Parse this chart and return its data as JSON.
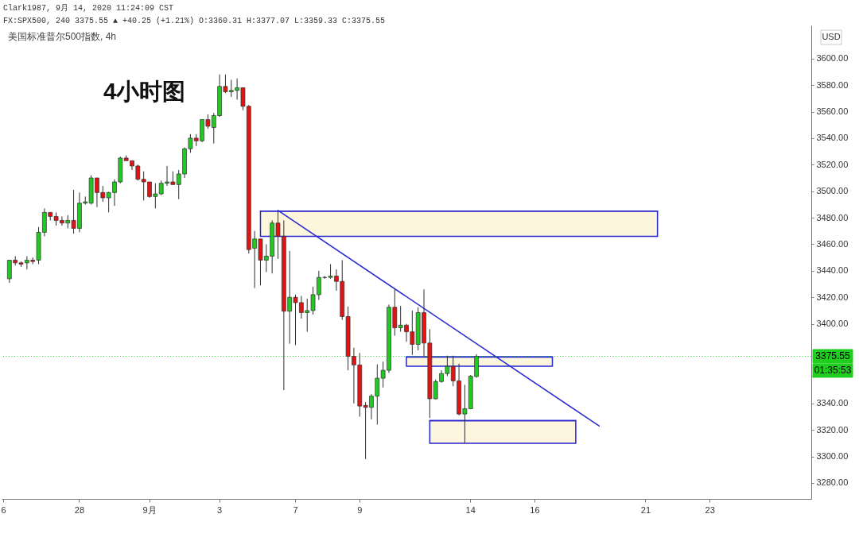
{
  "chart_data": {
    "type": "candlestick",
    "title": "美国标准普尔500指数, 4h",
    "ylabel": "USD",
    "categories": [
      "6",
      null,
      null,
      null,
      null,
      null,
      null,
      null,
      null,
      null,
      null,
      null,
      null,
      "28",
      null,
      null,
      null,
      null,
      null,
      null,
      null,
      null,
      null,
      null,
      null,
      "9月",
      null,
      null,
      null,
      null,
      null,
      null,
      null,
      null,
      null,
      null,
      null,
      "3",
      null,
      null,
      null,
      null,
      null,
      null,
      null,
      null,
      null,
      null,
      null,
      null,
      "7",
      null,
      null,
      null,
      null,
      null,
      null,
      null,
      null,
      null,
      null,
      "9",
      null,
      null,
      null,
      null,
      null,
      null,
      null,
      null,
      null,
      null,
      null,
      null,
      null,
      null,
      null,
      null,
      null,
      null,
      "14",
      null,
      null,
      null,
      null,
      null,
      null,
      null,
      null,
      null,
      null,
      "16",
      null,
      null,
      null,
      null,
      null,
      null,
      null,
      null,
      null,
      null,
      null,
      null,
      null,
      null,
      null,
      null,
      null,
      null,
      "21",
      null,
      null,
      null,
      null,
      null,
      null,
      null,
      null,
      null,
      null,
      "23",
      null,
      null,
      null,
      null,
      null,
      null,
      null,
      null,
      null,
      null,
      null,
      null,
      null,
      null,
      null,
      null,
      null
    ],
    "ohlc": [
      null,
      [
        3434,
        3448,
        3431,
        3448
      ],
      [
        3448,
        3451,
        3444,
        3446
      ],
      [
        3446,
        3447,
        3443,
        3445
      ],
      [
        3446,
        3451,
        3441,
        3448
      ],
      [
        3448,
        3450,
        3445,
        3447
      ],
      [
        3448,
        3473,
        3445,
        3469
      ],
      [
        3469,
        3487,
        3466,
        3484
      ],
      [
        3484,
        3484,
        3478,
        3481
      ],
      [
        3481,
        3484,
        3474,
        3478
      ],
      [
        3478,
        3481,
        3474,
        3476
      ],
      [
        3476,
        3482,
        3472,
        3478
      ],
      [
        3478,
        3501,
        3468,
        3472
      ],
      [
        3472,
        3499,
        3469,
        3491
      ],
      [
        3491,
        3496,
        3490,
        3492
      ],
      [
        3491,
        3512,
        3490,
        3510
      ],
      [
        3510,
        3510,
        3488,
        3499
      ],
      [
        3499,
        3504,
        3492,
        3495
      ],
      [
        3495,
        3499.5,
        3484,
        3499
      ],
      [
        3499,
        3509,
        3489,
        3507
      ],
      [
        3507,
        3526,
        3506,
        3525
      ],
      [
        3525,
        3527,
        3523,
        3523
      ],
      [
        3523,
        3523,
        3516,
        3519
      ],
      [
        3519,
        3520,
        3508,
        3509
      ],
      [
        3509,
        3515,
        3493,
        3507
      ],
      [
        3507,
        3507,
        3495,
        3496
      ],
      [
        3496,
        3506,
        3487,
        3498
      ],
      [
        3498,
        3508,
        3497,
        3506
      ],
      [
        3506,
        3519,
        3504,
        3507
      ],
      [
        3507,
        3515,
        3505,
        3505
      ],
      [
        3505,
        3516,
        3494,
        3513
      ],
      [
        3513,
        3533,
        3510,
        3532
      ],
      [
        3532,
        3543,
        3529,
        3540
      ],
      [
        3540,
        3543,
        3534,
        3538
      ],
      [
        3538,
        3554,
        3537,
        3554
      ],
      [
        3554,
        3558,
        3547,
        3549
      ],
      [
        3548,
        3559,
        3536,
        3557
      ],
      [
        3557,
        3588,
        3556,
        3579
      ],
      [
        3579,
        3588,
        3574,
        3575
      ],
      [
        3575,
        3584,
        3571,
        3576
      ],
      [
        3576,
        3585,
        3569,
        3578
      ],
      [
        3578,
        3578,
        3561,
        3564
      ],
      [
        3564,
        3565,
        3453,
        3456
      ],
      [
        3457,
        3470,
        3427,
        3464
      ],
      [
        3464,
        3464,
        3429,
        3448
      ],
      [
        3448,
        3460,
        3439,
        3451
      ],
      [
        3451,
        3478,
        3438,
        3476
      ],
      [
        3476,
        3485.5,
        3449,
        3466
      ],
      [
        3466,
        3478,
        3350,
        3409.5
      ],
      [
        3409.5,
        3455,
        3385,
        3420
      ],
      [
        3420,
        3422,
        3384,
        3416
      ],
      [
        3416,
        3421,
        3404,
        3408.5
      ],
      [
        3408.5,
        3419,
        3394,
        3410
      ],
      [
        3410,
        3428,
        3407,
        3422
      ],
      [
        3422,
        3440,
        3418,
        3435
      ],
      [
        3435,
        3436,
        3434,
        3435
      ],
      [
        3435,
        3445,
        3434,
        3436
      ],
      [
        3436,
        3441,
        3425,
        3432
      ],
      [
        3432,
        3448,
        3403,
        3405.5
      ],
      [
        3405.5,
        3413,
        3365,
        3375.5
      ],
      [
        3375.5,
        3382,
        3340,
        3369
      ],
      [
        3369,
        3378,
        3330,
        3338
      ],
      [
        3338.5,
        3341,
        3298,
        3337
      ],
      [
        3337,
        3347,
        3328,
        3345.5
      ],
      [
        3345.5,
        3369.5,
        3324,
        3359
      ],
      [
        3359,
        3371.5,
        3352,
        3365
      ],
      [
        3365,
        3414.5,
        3363,
        3412.5
      ],
      [
        3412.5,
        3426,
        3391,
        3397
      ],
      [
        3397,
        3413.5,
        3394,
        3399
      ],
      [
        3399,
        3400,
        3386.5,
        3394
      ],
      [
        3394,
        3410,
        3376.5,
        3384.5
      ],
      [
        3384.5,
        3412.5,
        3380,
        3408.5
      ],
      [
        3408.5,
        3426,
        3375.5,
        3385.5
      ],
      [
        3385.5,
        3396,
        3329,
        3343.5
      ],
      [
        3343.5,
        3358,
        3343,
        3356.5
      ],
      [
        3356.5,
        3365,
        3355.5,
        3362.5
      ],
      [
        3362.5,
        3376,
        3360.5,
        3368
      ],
      [
        3368,
        3376,
        3353,
        3357
      ],
      [
        3357,
        3370,
        3331,
        3332
      ],
      [
        3332,
        3354,
        3310,
        3336
      ],
      [
        3336,
        3361.5,
        3336,
        3360.5
      ],
      [
        3360.31,
        3377.07,
        3359.33,
        3375.55
      ],
      null,
      null,
      null,
      null,
      null,
      null,
      null,
      null,
      null,
      null,
      null,
      null,
      null,
      null,
      null,
      null,
      null,
      null,
      null,
      null,
      null,
      null,
      null,
      null,
      null,
      null,
      null,
      null,
      null,
      null,
      null,
      null,
      null,
      null,
      null,
      null,
      null,
      null,
      null,
      null,
      null,
      null,
      null,
      null,
      null,
      null,
      null,
      null,
      null,
      null,
      null,
      null,
      null,
      null,
      null,
      null,
      null
    ],
    "colors": [
      null,
      "#22c922",
      "#e01414",
      "#e01414",
      "#22c922",
      "#e01414",
      "#22c922",
      "#22c922",
      "#e01414",
      "#e01414",
      "#e01414",
      "#22c922",
      "#e01414",
      "#22c922",
      "#22c922",
      "#22c922",
      "#e01414",
      "#e01414",
      "#22c922",
      "#22c922",
      "#22c922",
      "#e01414",
      "#e01414",
      "#e01414",
      "#e01414",
      "#e01414",
      "#22c922",
      "#22c922",
      "#22c922",
      "#e01414",
      "#22c922",
      "#22c922",
      "#22c922",
      "#e01414",
      "#22c922",
      "#e01414",
      "#22c922",
      "#22c922",
      "#e01414",
      "#22c922",
      "#22c922",
      "#e01414",
      "#e01414",
      "#22c922",
      "#e01414",
      "#22c922",
      "#22c922",
      "#e01414",
      "#e01414",
      "#22c922",
      "#e01414",
      "#e01414",
      "#22c922",
      "#22c922",
      "#22c922",
      "#2e2e2e",
      "#22c922",
      "#e01414",
      "#e01414",
      "#e01414",
      "#e01414",
      "#e01414",
      "#e01414",
      "#22c922",
      "#22c922",
      "#22c922",
      "#22c922",
      "#e01414",
      "#22c922",
      "#e01414",
      "#e01414",
      "#22c922",
      "#e01414",
      "#e01414",
      "#22c922",
      "#22c922",
      "#22c922",
      "#e01414",
      "#e01414",
      "#22c922",
      "#22c922",
      "#22c922",
      null,
      null,
      null,
      null,
      null,
      null,
      null,
      null,
      null,
      null,
      null,
      null,
      null,
      null,
      null,
      null,
      null,
      null,
      null,
      null,
      null,
      null,
      null,
      null,
      null,
      null,
      null,
      null,
      null,
      null,
      null,
      null,
      null,
      null,
      null,
      null,
      null,
      null,
      null,
      null,
      null,
      null,
      null,
      null,
      null,
      null,
      null,
      null,
      null,
      null,
      null,
      null,
      null,
      null,
      null,
      null,
      null
    ],
    "series": [
      {
        "type": "line",
        "color": "#2525d0",
        "values": [
          null,
          null,
          null,
          null,
          null,
          null,
          null,
          null,
          null,
          null,
          null,
          null,
          null,
          null,
          null,
          null,
          null,
          null,
          null,
          null,
          null,
          null,
          null,
          null,
          null,
          null,
          null,
          null,
          null,
          null,
          null,
          null,
          null,
          null,
          null,
          null,
          null,
          null,
          null,
          null,
          null,
          null,
          null,
          null,
          3485,
          3485,
          3485,
          3485,
          3485,
          3485,
          3485,
          3485,
          3485,
          3485,
          3485,
          3485,
          3485,
          3485,
          3485,
          3485,
          3485,
          3485,
          3485,
          3485,
          3485,
          3485,
          3485,
          3485,
          3485,
          3485,
          3485,
          3485,
          3485,
          3485,
          3485,
          3485,
          3485,
          3485,
          3485,
          3485,
          3485,
          3485,
          3485,
          3485,
          3485,
          3485,
          3485,
          3485,
          3485,
          3485,
          3485,
          3485,
          3485,
          3485,
          3485,
          3485,
          3485,
          3485,
          3485,
          3485,
          3485,
          3485,
          3485,
          3485,
          3485,
          3485,
          3485,
          3485,
          3485,
          3485,
          3485,
          3485,
          3485,
          null,
          null,
          null,
          null,
          null,
          null,
          null,
          null,
          null,
          null,
          null,
          null,
          null,
          null,
          null,
          null,
          null,
          null,
          null,
          null,
          null,
          null,
          null,
          null,
          null,
          null
        ],
        "upper": [
          null,
          null,
          null,
          null,
          null,
          null,
          null,
          null,
          null,
          null,
          null,
          null,
          null,
          null,
          null,
          null,
          null,
          null,
          null,
          null,
          null,
          null,
          null,
          null,
          null,
          null,
          null,
          null,
          null,
          null,
          null,
          null,
          null,
          null,
          null,
          null,
          null,
          null,
          null,
          null,
          null,
          null,
          null,
          null,
          3485,
          3485,
          3485,
          3485,
          3485,
          3485,
          3485,
          3485,
          3485,
          3485,
          3485,
          3485,
          3485,
          3485,
          3485,
          3485,
          3485,
          3485,
          3485,
          3485,
          3485,
          3485,
          3485,
          3485,
          3485,
          3485,
          3485,
          3485,
          3485,
          3485,
          3485,
          3485,
          3485,
          3485,
          3485,
          3485,
          3485,
          3485,
          3485,
          3485,
          3485,
          3485,
          3485,
          3485,
          3485,
          3485,
          3485,
          3485,
          3485,
          3485,
          3485,
          3485,
          3485,
          3485,
          3485,
          3485,
          3485,
          3485,
          3485,
          3485,
          3485,
          3485,
          3485,
          3485,
          3485,
          3485,
          3485,
          3485,
          3485,
          null,
          null,
          null,
          null,
          null,
          null,
          null,
          null,
          null,
          null,
          null,
          null,
          null,
          null,
          null,
          null,
          null,
          null,
          null,
          null,
          null,
          null,
          null,
          null,
          null,
          null
        ],
        "lower": [
          null,
          null,
          null,
          null,
          null,
          null,
          null,
          null,
          null,
          null,
          null,
          null,
          null,
          null,
          null,
          null,
          null,
          null,
          null,
          null,
          null,
          null,
          null,
          null,
          null,
          null,
          null,
          null,
          null,
          null,
          null,
          null,
          null,
          null,
          null,
          null,
          null,
          null,
          null,
          null,
          null,
          null,
          null,
          null,
          3466,
          3466,
          3466,
          3466,
          3466,
          3466,
          3466,
          3466,
          3466,
          3466,
          3466,
          3466,
          3466,
          3466,
          3466,
          3466,
          3466,
          3466,
          3466,
          3466,
          3466,
          3466,
          3466,
          3466,
          3466,
          3466,
          3466,
          3466,
          3466,
          3466,
          3466,
          3466,
          3466,
          3466,
          3466,
          3466,
          3466,
          3466,
          3466,
          3466,
          3466,
          3466,
          3466,
          3466,
          3466,
          3466,
          3466,
          3466,
          3466,
          3466,
          3466,
          3466,
          3466,
          3466,
          3466,
          3466,
          3466,
          3466,
          3466,
          3466,
          3466,
          3466,
          3466,
          3466,
          3466,
          3466,
          3466,
          3466,
          3466,
          null,
          null,
          null,
          null,
          null,
          null,
          null,
          null,
          null,
          null,
          null,
          null,
          null,
          null,
          null,
          null,
          null,
          null,
          null,
          null,
          null,
          null,
          null,
          null,
          null,
          null
        ]
      },
      {
        "type": "line",
        "color": "#2727d2",
        "values": [
          null,
          null,
          null,
          null,
          null,
          null,
          null,
          null,
          null,
          null,
          null,
          null,
          null,
          null,
          null,
          null,
          null,
          null,
          null,
          null,
          null,
          null,
          null,
          null,
          null,
          null,
          null,
          null,
          null,
          null,
          null,
          null,
          null,
          null,
          null,
          null,
          null,
          null,
          null,
          null,
          null,
          null,
          null,
          null,
          null,
          null,
          null,
          null,
          null,
          null,
          null,
          null,
          null,
          null,
          null,
          null,
          null,
          null,
          null,
          null,
          null,
          null,
          null,
          null,
          null,
          null,
          null,
          null,
          null,
          3375,
          3375,
          3375,
          3375,
          3375,
          3375,
          3375,
          3375,
          3375,
          3375,
          3375,
          3375,
          3375,
          3375,
          3375,
          3375,
          3375,
          3375,
          3375,
          3375,
          3375,
          3375,
          3375,
          3375,
          3375,
          3375,
          null,
          null,
          null,
          null,
          null,
          null,
          null,
          null,
          null,
          null,
          null,
          null,
          null,
          null,
          null,
          null,
          null,
          null,
          null,
          null,
          null,
          null,
          null,
          null,
          null,
          null,
          null,
          null,
          null,
          null,
          null,
          null,
          null,
          null,
          null,
          null,
          null,
          null,
          null,
          null,
          null,
          null,
          null,
          null
        ],
        "upper": [
          null,
          null,
          null,
          null,
          null,
          null,
          null,
          null,
          null,
          null,
          null,
          null,
          null,
          null,
          null,
          null,
          null,
          null,
          null,
          null,
          null,
          null,
          null,
          null,
          null,
          null,
          null,
          null,
          null,
          null,
          null,
          null,
          null,
          null,
          null,
          null,
          null,
          null,
          null,
          null,
          null,
          null,
          null,
          null,
          null,
          null,
          null,
          null,
          null,
          null,
          null,
          null,
          null,
          null,
          null,
          null,
          null,
          null,
          null,
          null,
          null,
          null,
          null,
          null,
          null,
          null,
          null,
          null,
          null,
          3375,
          3375,
          3375,
          3375,
          3375,
          3375,
          3375,
          3375,
          3375,
          3375,
          3375,
          3375,
          3375,
          3375,
          3375,
          3375,
          3375,
          3375,
          3375,
          3375,
          3375,
          3375,
          3375,
          3375,
          3375,
          3375,
          null,
          null,
          null,
          null,
          null,
          null,
          null,
          null,
          null,
          null,
          null,
          null,
          null,
          null,
          null,
          null,
          null,
          null,
          null,
          null,
          null,
          null,
          null,
          null,
          null,
          null,
          null,
          null,
          null,
          null,
          null,
          null,
          null,
          null,
          null,
          null,
          null,
          null,
          null,
          null,
          null,
          null,
          null,
          null
        ],
        "lower": [
          null,
          null,
          null,
          null,
          null,
          null,
          null,
          null,
          null,
          null,
          null,
          null,
          null,
          null,
          null,
          null,
          null,
          null,
          null,
          null,
          null,
          null,
          null,
          null,
          null,
          null,
          null,
          null,
          null,
          null,
          null,
          null,
          null,
          null,
          null,
          null,
          null,
          null,
          null,
          null,
          null,
          null,
          null,
          null,
          null,
          null,
          null,
          null,
          null,
          null,
          null,
          null,
          null,
          null,
          null,
          null,
          null,
          null,
          null,
          null,
          null,
          null,
          null,
          null,
          null,
          null,
          null,
          null,
          null,
          3368,
          3368,
          3368,
          3368,
          3368,
          3368,
          3368,
          3368,
          3368,
          3368,
          3368,
          3368,
          3368,
          3368,
          3368,
          3368,
          3368,
          3368,
          3368,
          3368,
          3368,
          3368,
          3368,
          3368,
          3368,
          3368,
          null,
          null,
          null,
          null,
          null,
          null,
          null,
          null,
          null,
          null,
          null,
          null,
          null,
          null,
          null,
          null,
          null,
          null,
          null,
          null,
          null,
          null,
          null,
          null,
          null,
          null,
          null,
          null,
          null,
          null,
          null,
          null,
          null,
          null,
          null,
          null,
          null,
          null,
          null,
          null,
          null,
          null,
          null,
          null
        ]
      },
      {
        "type": "line",
        "color": "#2323ce",
        "values": [
          null,
          null,
          null,
          null,
          null,
          null,
          null,
          null,
          null,
          null,
          null,
          null,
          null,
          null,
          null,
          null,
          null,
          null,
          null,
          null,
          null,
          null,
          null,
          null,
          null,
          null,
          null,
          null,
          null,
          null,
          null,
          null,
          null,
          null,
          null,
          null,
          null,
          null,
          null,
          null,
          null,
          null,
          null,
          null,
          null,
          null,
          null,
          null,
          null,
          null,
          null,
          null,
          null,
          null,
          null,
          null,
          null,
          null,
          null,
          null,
          null,
          null,
          null,
          null,
          null,
          null,
          null,
          null,
          null,
          null,
          null,
          null,
          null,
          3327,
          3327,
          3327,
          3327,
          3327,
          3327,
          3327,
          3327,
          3327,
          3327,
          3327,
          3327,
          3327,
          3327,
          3327,
          3327,
          3327,
          3327,
          3327,
          3327,
          3327,
          3327,
          3327,
          3327,
          3327,
          3327,
          null,
          null,
          null,
          null,
          null,
          null,
          null,
          null,
          null,
          null,
          null,
          null,
          null,
          null,
          null,
          null,
          null,
          null,
          null,
          null,
          null,
          null,
          null,
          null,
          null,
          null,
          null,
          null,
          null,
          null,
          null,
          null,
          null,
          null,
          null,
          null,
          null,
          null,
          null,
          null
        ],
        "upper": [
          null,
          null,
          null,
          null,
          null,
          null,
          null,
          null,
          null,
          null,
          null,
          null,
          null,
          null,
          null,
          null,
          null,
          null,
          null,
          null,
          null,
          null,
          null,
          null,
          null,
          null,
          null,
          null,
          null,
          null,
          null,
          null,
          null,
          null,
          null,
          null,
          null,
          null,
          null,
          null,
          null,
          null,
          null,
          null,
          null,
          null,
          null,
          null,
          null,
          null,
          null,
          null,
          null,
          null,
          null,
          null,
          null,
          null,
          null,
          null,
          null,
          null,
          null,
          null,
          null,
          null,
          null,
          null,
          null,
          null,
          null,
          null,
          null,
          3327,
          3327,
          3327,
          3327,
          3327,
          3327,
          3327,
          3327,
          3327,
          3327,
          3327,
          3327,
          3327,
          3327,
          3327,
          3327,
          3327,
          3327,
          3327,
          3327,
          3327,
          3327,
          3327,
          3327,
          3327,
          3327,
          null,
          null,
          null,
          null,
          null,
          null,
          null,
          null,
          null,
          null,
          null,
          null,
          null,
          null,
          null,
          null,
          null,
          null,
          null,
          null,
          null,
          null,
          null,
          null,
          null,
          null,
          null,
          null,
          null,
          null,
          null,
          null,
          null,
          null,
          null,
          null,
          null,
          null,
          null,
          null
        ],
        "lower": [
          null,
          null,
          null,
          null,
          null,
          null,
          null,
          null,
          null,
          null,
          null,
          null,
          null,
          null,
          null,
          null,
          null,
          null,
          null,
          null,
          null,
          null,
          null,
          null,
          null,
          null,
          null,
          null,
          null,
          null,
          null,
          null,
          null,
          null,
          null,
          null,
          null,
          null,
          null,
          null,
          null,
          null,
          null,
          null,
          null,
          null,
          null,
          null,
          null,
          null,
          null,
          null,
          null,
          null,
          null,
          null,
          null,
          null,
          null,
          null,
          null,
          null,
          null,
          null,
          null,
          null,
          null,
          null,
          null,
          null,
          null,
          null,
          null,
          3310,
          3310,
          3310,
          3310,
          3310,
          3310,
          3310,
          3310,
          3310,
          3310,
          3310,
          3310,
          3310,
          3310,
          3310,
          3310,
          3310,
          3310,
          3310,
          3310,
          3310,
          3310,
          3310,
          3310,
          3310,
          3310,
          null,
          null,
          null,
          null,
          null,
          null,
          null,
          null,
          null,
          null,
          null,
          null,
          null,
          null,
          null,
          null,
          null,
          null,
          null,
          null,
          null,
          null,
          null,
          null,
          null,
          null,
          null,
          null,
          null,
          null,
          null,
          null,
          null,
          null,
          null,
          null,
          null,
          null,
          null,
          null
        ]
      },
      {
        "type": "line",
        "color": "#2a2ad4",
        "values": [
          null,
          null,
          null,
          null,
          null,
          null,
          null,
          null,
          null,
          null,
          null,
          null,
          null,
          null,
          null,
          null,
          null,
          null,
          null,
          null,
          null,
          null,
          null,
          null,
          null,
          null,
          null,
          null,
          null,
          null,
          null,
          null,
          null,
          null,
          null,
          null,
          null,
          null,
          null,
          null,
          null,
          null,
          null,
          null,
          null,
          null,
          null,
          3485.5,
          null,
          null,
          null,
          null,
          null,
          null,
          null,
          null,
          null,
          null,
          null,
          null,
          null,
          null,
          null,
          null,
          null,
          null,
          null,
          null,
          null,
          null,
          null,
          null,
          null,
          null,
          null,
          null,
          null,
          null,
          null,
          null,
          null,
          null,
          null,
          null,
          null,
          null,
          null,
          null,
          null,
          null,
          null,
          null,
          null,
          null,
          null,
          null,
          null,
          null,
          null,
          null,
          null,
          null,
          3323,
          null,
          null,
          null,
          null,
          null,
          null,
          null,
          null,
          null,
          null,
          null,
          null,
          null,
          null,
          null,
          null,
          null,
          null,
          null,
          null,
          null,
          null,
          null,
          null,
          null,
          null,
          null,
          null,
          null,
          null,
          null,
          null,
          null,
          null,
          null,
          null
        ]
      }
    ],
    "ylim": [
      3268,
      3625
    ],
    "yticks": [
      {
        "value": 3280,
        "label": "3280.00"
      },
      {
        "value": 3300,
        "label": "3300.00"
      },
      {
        "value": 3320,
        "label": "3320.00"
      },
      {
        "value": 3340,
        "label": "3340.00"
      },
      {
        "value": 3360,
        "label": null
      },
      {
        "value": 3400,
        "label": "3400.00"
      },
      {
        "value": 3420,
        "label": "3420.00"
      },
      {
        "value": 3440,
        "label": "3440.00"
      },
      {
        "value": 3460,
        "label": "3460.00"
      },
      {
        "value": 3480,
        "label": "3480.00"
      },
      {
        "value": 3500,
        "label": "3500.00"
      },
      {
        "value": 3520,
        "label": "3520.00"
      },
      {
        "value": 3540,
        "label": "3540.00"
      },
      {
        "value": 3560,
        "label": "3560.00"
      },
      {
        "value": 3580,
        "label": "3580.00"
      },
      {
        "value": 3600,
        "label": "3600.00"
      }
    ],
    "ref_lines": [
      {
        "axis": "y",
        "value": 3375.55,
        "label": "3375.55",
        "color": "#1fce1f",
        "line_style": "dotted"
      }
    ],
    "annotations": [
      "Clark1987, 9月 14, 2020 11:24:09 CST",
      "FX:SPX500, 240 3375.55 ▲ +40.25 (+1.21%) O:3360.31 H:3377.07 L:3359.33 C:3375.55",
      "4小时图",
      "01:35:53"
    ],
    "grid": false
  }
}
